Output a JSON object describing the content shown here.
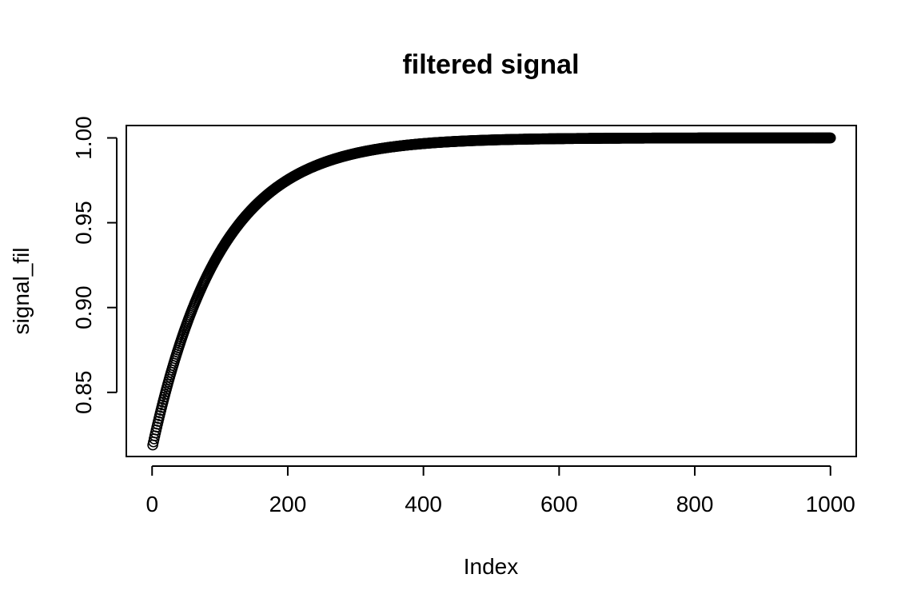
{
  "chart_data": {
    "type": "scatter",
    "title": "filtered signal",
    "xlabel": "Index",
    "ylabel": "signal_fil",
    "xlim": [
      -38,
      1038
    ],
    "ylim": [
      0.8122,
      1.0073
    ],
    "x_ticks": [
      0,
      200,
      400,
      600,
      800,
      1000
    ],
    "y_ticks": [
      0.85,
      0.9,
      0.95,
      1.0
    ],
    "x_tick_labels": [
      "0",
      "200",
      "400",
      "600",
      "800",
      "1000"
    ],
    "y_tick_labels": [
      "0.85",
      "0.90",
      "0.95",
      "1.00"
    ],
    "grid": false,
    "marker": "open-circle",
    "marker_color": "#000000",
    "series": [
      {
        "n_points": 1000,
        "curve": "exponential_approach",
        "y_start": 0.819,
        "y_end": 1.0,
        "time_constant": 100,
        "sample_points": [
          {
            "x": 1,
            "y": 0.819
          },
          {
            "x": 50,
            "y": 0.89
          },
          {
            "x": 100,
            "y": 0.933
          },
          {
            "x": 200,
            "y": 0.975
          },
          {
            "x": 300,
            "y": 0.991
          },
          {
            "x": 400,
            "y": 0.997
          },
          {
            "x": 600,
            "y": 0.9995
          },
          {
            "x": 1000,
            "y": 1.0
          }
        ]
      }
    ]
  }
}
